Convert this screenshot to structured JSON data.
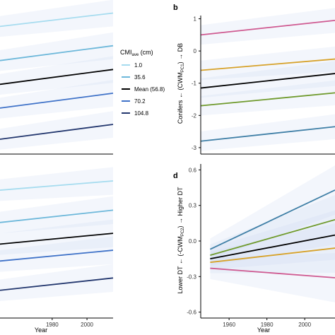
{
  "legend": {
    "title_main": "CMI",
    "title_sub": "ave",
    "title_unit": " (cm)",
    "entries": [
      {
        "label": "1.0",
        "color": "#a6dcef"
      },
      {
        "label": "35.6",
        "color": "#6db8da"
      },
      {
        "label": "Mean (56.8)",
        "color": "#000000"
      },
      {
        "label": "70.2",
        "color": "#3f72c8"
      },
      {
        "label": "104.8",
        "color": "#23376e"
      }
    ]
  },
  "chart_data": [
    {
      "panel": "a",
      "type": "line",
      "visible_letter": "",
      "xlabel": "",
      "xticks": [],
      "xlim": [
        1950,
        2015
      ],
      "ylim": [
        0,
        1
      ],
      "yticks": [],
      "series": [
        {
          "color": "#a6dcef",
          "x": [
            1950,
            2015
          ],
          "y": [
            0.86,
            0.95
          ]
        },
        {
          "color": "#6db8da",
          "x": [
            1950,
            2015
          ],
          "y": [
            0.63,
            0.73
          ]
        },
        {
          "color": "#000000",
          "x": [
            1950,
            2015
          ],
          "y": [
            0.47,
            0.57
          ]
        },
        {
          "color": "#3f72c8",
          "x": [
            1950,
            2015
          ],
          "y": [
            0.31,
            0.41
          ]
        },
        {
          "color": "#23376e",
          "x": [
            1950,
            2015
          ],
          "y": [
            0.1,
            0.2
          ]
        }
      ]
    },
    {
      "panel": "b",
      "type": "line",
      "visible_letter": "b",
      "ylabel_parts": [
        "Conifers ← (CWM",
        "PC1",
        ") → DB"
      ],
      "xlim": [
        1950,
        2015
      ],
      "ylim": [
        -3.2,
        1.1
      ],
      "yticks": [
        1,
        0,
        -1,
        -2,
        -3
      ],
      "xticks": [],
      "series": [
        {
          "color": "#cf5a91",
          "x": [
            1950,
            2015
          ],
          "y": [
            0.5,
            0.95
          ]
        },
        {
          "color": "#d7a22a",
          "x": [
            1950,
            2015
          ],
          "y": [
            -0.6,
            -0.25
          ]
        },
        {
          "color": "#000000",
          "x": [
            1950,
            2015
          ],
          "y": [
            -1.15,
            -0.7
          ]
        },
        {
          "color": "#6f9a2c",
          "x": [
            1950,
            2015
          ],
          "y": [
            -1.7,
            -1.3
          ]
        },
        {
          "color": "#3f7fa6",
          "x": [
            1950,
            2015
          ],
          "y": [
            -2.8,
            -2.35
          ]
        }
      ]
    },
    {
      "panel": "c",
      "type": "line",
      "visible_letter": "",
      "xlabel": "Year",
      "xticks": [
        1980,
        2000
      ],
      "xlim": [
        1950,
        2015
      ],
      "ylim": [
        0,
        1
      ],
      "yticks": [],
      "series": [
        {
          "color": "#a6dcef",
          "x": [
            1950,
            2015
          ],
          "y": [
            0.83,
            0.89
          ]
        },
        {
          "color": "#6db8da",
          "x": [
            1950,
            2015
          ],
          "y": [
            0.62,
            0.7
          ]
        },
        {
          "color": "#000000",
          "x": [
            1950,
            2015
          ],
          "y": [
            0.48,
            0.55
          ]
        },
        {
          "color": "#3f72c8",
          "x": [
            1950,
            2015
          ],
          "y": [
            0.37,
            0.44
          ]
        },
        {
          "color": "#23376e",
          "x": [
            1950,
            2015
          ],
          "y": [
            0.18,
            0.26
          ]
        }
      ]
    },
    {
      "panel": "d",
      "type": "line",
      "visible_letter": "d",
      "xlabel": "Year",
      "ylabel_parts": [
        "Lower DT ← (-CWM",
        "PC2",
        ") → Higher DT"
      ],
      "xticks": [
        1960,
        1980,
        2000
      ],
      "xlim": [
        1945,
        2016
      ],
      "ylim": [
        -0.65,
        0.65
      ],
      "yticks": [
        0.6,
        0.3,
        0.0,
        -0.3,
        -0.6
      ],
      "ytick_labels": [
        "0.6",
        "0.3",
        "0.0",
        "-0.3",
        "-0.6"
      ],
      "series": [
        {
          "color": "#3f7fa6",
          "x": [
            1950,
            2016
          ],
          "y": [
            -0.07,
            0.43
          ]
        },
        {
          "color": "#6f9a2c",
          "x": [
            1950,
            2016
          ],
          "y": [
            -0.12,
            0.18
          ]
        },
        {
          "color": "#000000",
          "x": [
            1950,
            2016
          ],
          "y": [
            -0.15,
            0.05
          ]
        },
        {
          "color": "#d7a22a",
          "x": [
            1950,
            2016
          ],
          "y": [
            -0.18,
            -0.06
          ]
        },
        {
          "color": "#cf5a91",
          "x": [
            1950,
            2016
          ],
          "y": [
            -0.23,
            -0.31
          ]
        }
      ]
    }
  ]
}
